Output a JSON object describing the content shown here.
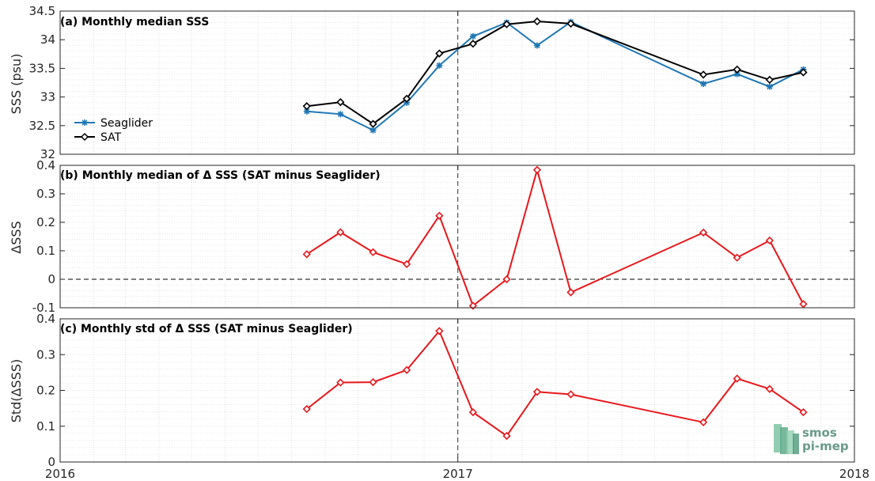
{
  "chart_data": [
    {
      "type": "line",
      "title": "(a) Monthly median SSS",
      "ylabel": "SSS (psu)",
      "ylim": [
        32,
        34.5
      ],
      "yticks": [
        "32",
        "32.5",
        "33",
        "33.5",
        "34",
        "34.5"
      ],
      "x": [
        "2016-08-15",
        "2016-09-15",
        "2016-10-15",
        "2016-11-15",
        "2016-12-15",
        "2017-01-15",
        "2017-02-15",
        "2017-03-15",
        "2017-04-15",
        "2017-08-15",
        "2017-09-15",
        "2017-10-15",
        "2017-11-15"
      ],
      "series": [
        {
          "name": "Seaglider",
          "color": "#1f77b4",
          "marker": "star",
          "values": [
            32.75,
            32.7,
            32.42,
            32.9,
            33.55,
            34.06,
            34.3,
            33.9,
            34.31,
            33.23,
            33.4,
            33.18,
            33.48
          ]
        },
        {
          "name": "SAT",
          "color": "#000000",
          "marker": "diamond",
          "values": [
            32.84,
            32.91,
            32.53,
            32.97,
            33.76,
            33.93,
            34.27,
            34.32,
            34.28,
            33.39,
            33.48,
            33.3,
            33.43
          ]
        }
      ],
      "legend": "middle-left",
      "grid": true
    },
    {
      "type": "line",
      "title": "(b) Monthly median of Δ SSS (SAT minus Seaglider)",
      "ylabel": "ΔSSS",
      "ylim": [
        -0.1,
        0.4
      ],
      "yticks": [
        "-0.1",
        "0",
        "0.1",
        "0.2",
        "0.3",
        "0.4"
      ],
      "x": [
        "2016-08-15",
        "2016-09-15",
        "2016-10-15",
        "2016-11-15",
        "2016-12-15",
        "2017-01-15",
        "2017-02-15",
        "2017-03-15",
        "2017-04-15",
        "2017-08-15",
        "2017-09-15",
        "2017-10-15",
        "2017-11-15"
      ],
      "series": [
        {
          "color": "#e8171c",
          "marker": "diamond",
          "values": [
            0.088,
            0.165,
            0.095,
            0.053,
            0.223,
            -0.093,
            0.0,
            0.384,
            -0.046,
            0.164,
            0.076,
            0.136,
            -0.087
          ]
        }
      ],
      "zero_line": true,
      "grid": true
    },
    {
      "type": "line",
      "title": "(c) Monthly std of Δ SSS (SAT minus Seaglider)",
      "ylabel": "Std(ΔSSS)",
      "ylim": [
        0,
        0.4
      ],
      "yticks": [
        "0",
        "0.1",
        "0.2",
        "0.3",
        "0.4"
      ],
      "x": [
        "2016-08-15",
        "2016-09-15",
        "2016-10-15",
        "2016-11-15",
        "2016-12-15",
        "2017-01-15",
        "2017-02-15",
        "2017-03-15",
        "2017-04-15",
        "2017-08-15",
        "2017-09-15",
        "2017-10-15",
        "2017-11-15"
      ],
      "series": [
        {
          "color": "#e8171c",
          "marker": "diamond",
          "values": [
            0.148,
            0.222,
            0.223,
            0.257,
            0.366,
            0.139,
            0.073,
            0.196,
            0.189,
            0.111,
            0.233,
            0.204,
            0.139
          ]
        }
      ],
      "grid": true
    }
  ],
  "xaxis": {
    "range": [
      "2016-01-01",
      "2018-01-01"
    ],
    "ticks": [
      "2016",
      "2017",
      "2018"
    ],
    "vline": "2017-01-01"
  },
  "logo": {
    "line1": "smos",
    "line2": "pi-mep"
  }
}
